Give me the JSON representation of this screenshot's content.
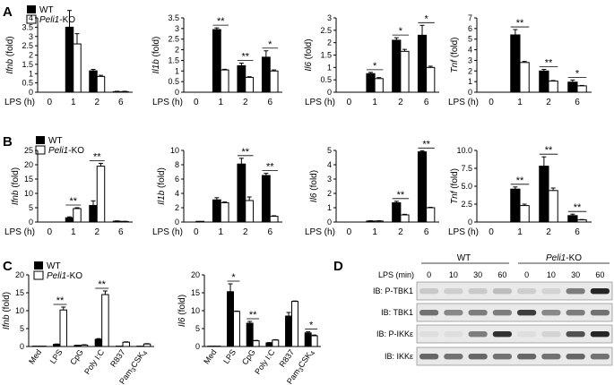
{
  "panel_labels": [
    "A",
    "B",
    "C",
    "D"
  ],
  "legend": {
    "wt": "WT",
    "ko": "Peli1-KO",
    "ko_italic": "Peli1",
    "ko_suffix": "-KO"
  },
  "lps_label": "LPS (h)",
  "sig": {
    "double": "**",
    "single": "*"
  },
  "chart_data": [
    {
      "id": "A1",
      "panel": "A",
      "type": "bar",
      "ylabel": "Ifnb (fold)",
      "ylabel_gene": "Ifnb",
      "ylabel_unit": "(fold)",
      "xlabel": "LPS (h)",
      "categories": [
        "0",
        "1",
        "2",
        "6"
      ],
      "ylim": [
        0,
        4
      ],
      "yticks": [
        0,
        0.5,
        1,
        1.5,
        2,
        2.5,
        3,
        3.5,
        4
      ],
      "series": [
        {
          "name": "WT",
          "values": [
            0,
            3.5,
            1.15,
            0.03
          ],
          "errors": [
            0,
            0.9,
            0.08,
            0.02
          ]
        },
        {
          "name": "Peli1-KO",
          "values": [
            0,
            2.6,
            0.85,
            0.03
          ],
          "errors": [
            0,
            0.55,
            0.06,
            0.02
          ]
        }
      ],
      "sig": [
        "",
        "",
        "",
        ""
      ]
    },
    {
      "id": "A2",
      "panel": "A",
      "type": "bar",
      "ylabel": "Il1b (fold)",
      "ylabel_gene": "Il1b",
      "ylabel_unit": "(fold)",
      "xlabel": "LPS (h)",
      "categories": [
        "0",
        "1",
        "2",
        "6"
      ],
      "ylim": [
        0,
        3.5
      ],
      "yticks": [
        0,
        0.5,
        1,
        1.5,
        2,
        2.5,
        3,
        3.5
      ],
      "series": [
        {
          "name": "WT",
          "values": [
            0,
            2.95,
            1.25,
            1.65
          ],
          "errors": [
            0,
            0.08,
            0.12,
            0.3
          ]
        },
        {
          "name": "Peli1-KO",
          "values": [
            0,
            1.05,
            0.7,
            1.0
          ],
          "errors": [
            0,
            0.03,
            0.03,
            0.05
          ]
        }
      ],
      "sig": [
        "",
        "**",
        "**",
        "*"
      ]
    },
    {
      "id": "A3",
      "panel": "A",
      "type": "bar",
      "ylabel": "Il6 (fold)",
      "ylabel_gene": "Il6",
      "ylabel_unit": "(fold)",
      "xlabel": "LPS (h)",
      "categories": [
        "0",
        "1",
        "2",
        "6"
      ],
      "ylim": [
        0,
        3
      ],
      "yticks": [
        0,
        0.5,
        1,
        1.5,
        2,
        2.5,
        3
      ],
      "series": [
        {
          "name": "WT",
          "values": [
            0,
            0.75,
            2.1,
            2.3
          ],
          "errors": [
            0,
            0.05,
            0.1,
            0.4
          ]
        },
        {
          "name": "Peli1-KO",
          "values": [
            0,
            0.55,
            1.65,
            1.0
          ],
          "errors": [
            0,
            0.04,
            0.08,
            0.05
          ]
        }
      ],
      "sig": [
        "",
        "*",
        "*",
        "*"
      ]
    },
    {
      "id": "A4",
      "panel": "A",
      "type": "bar",
      "ylabel": "Tnf (fold)",
      "ylabel_gene": "Tnf",
      "ylabel_unit": "(fold)",
      "xlabel": "LPS (h)",
      "categories": [
        "0",
        "1",
        "2",
        "6"
      ],
      "ylim": [
        0,
        7
      ],
      "yticks": [
        0,
        1,
        2,
        3,
        4,
        5,
        6,
        7
      ],
      "series": [
        {
          "name": "WT",
          "values": [
            0,
            5.4,
            2.0,
            0.95
          ],
          "errors": [
            0,
            0.5,
            0.15,
            0.2
          ]
        },
        {
          "name": "Peli1-KO",
          "values": [
            0,
            2.8,
            1.05,
            0.6
          ],
          "errors": [
            0,
            0.1,
            0.05,
            0.04
          ]
        }
      ],
      "sig": [
        "",
        "**",
        "**",
        "*"
      ]
    },
    {
      "id": "B1",
      "panel": "B",
      "type": "bar",
      "ylabel": "Ifnb (fold)",
      "ylabel_gene": "Ifnb",
      "ylabel_unit": "(fold)",
      "xlabel": "LPS (h)",
      "categories": [
        "0",
        "1",
        "2",
        "6"
      ],
      "ylim": [
        0,
        25
      ],
      "yticks": [
        0,
        5,
        10,
        15,
        20,
        25
      ],
      "series": [
        {
          "name": "WT",
          "values": [
            0,
            1.5,
            5.8,
            0.3
          ],
          "errors": [
            0,
            0.3,
            1.6,
            0.1
          ]
        },
        {
          "name": "Peli1-KO",
          "values": [
            0,
            4.7,
            19.5,
            0.2
          ],
          "errors": [
            0,
            0.3,
            1.0,
            0.05
          ]
        }
      ],
      "sig": [
        "",
        "**",
        "**",
        ""
      ]
    },
    {
      "id": "B2",
      "panel": "B",
      "type": "bar",
      "ylabel": "Il1b (fold)",
      "ylabel_gene": "Il1b",
      "ylabel_unit": "(fold)",
      "xlabel": "LPS (h)",
      "categories": [
        "0",
        "1",
        "2",
        "6"
      ],
      "ylim": [
        0,
        10
      ],
      "yticks": [
        0,
        2,
        4,
        6,
        8,
        10
      ],
      "series": [
        {
          "name": "WT",
          "values": [
            0,
            3.1,
            8.1,
            6.5
          ],
          "errors": [
            0,
            0.3,
            0.8,
            0.3
          ]
        },
        {
          "name": "Peli1-KO",
          "values": [
            0.1,
            2.7,
            3.0,
            0.8
          ],
          "errors": [
            0,
            0.1,
            0.5,
            0.08
          ]
        }
      ],
      "sig": [
        "",
        "",
        "**",
        "**"
      ]
    },
    {
      "id": "B3",
      "panel": "B",
      "type": "bar",
      "ylabel": "Il6 (fold)",
      "ylabel_gene": "Il6",
      "ylabel_unit": "(fold)",
      "xlabel": "LPS (h)",
      "categories": [
        "0",
        "1",
        "2",
        "6"
      ],
      "ylim": [
        0,
        5
      ],
      "yticks": [
        0,
        1,
        2,
        3,
        4,
        5
      ],
      "series": [
        {
          "name": "WT",
          "values": [
            0,
            0.07,
            1.35,
            4.9
          ],
          "errors": [
            0,
            0.02,
            0.1,
            0.08
          ]
        },
        {
          "name": "Peli1-KO",
          "values": [
            0,
            0.07,
            0.5,
            1.0
          ],
          "errors": [
            0,
            0.02,
            0.04,
            0.03
          ]
        }
      ],
      "sig": [
        "",
        "",
        "**",
        "**"
      ]
    },
    {
      "id": "B4",
      "panel": "B",
      "type": "bar",
      "ylabel": "Tnf (fold)",
      "ylabel_gene": "Tnf",
      "ylabel_unit": "(fold)",
      "xlabel": "LPS (h)",
      "categories": [
        "0",
        "1",
        "2",
        "6"
      ],
      "ylim": [
        0,
        10
      ],
      "yticks": [
        0,
        2.5,
        5,
        7.5,
        10
      ],
      "ytick_labels": [
        "0",
        "2.5",
        "5.0",
        "7.5",
        "10.0"
      ],
      "series": [
        {
          "name": "WT",
          "values": [
            0,
            4.6,
            7.8,
            0.9
          ],
          "errors": [
            0,
            0.3,
            1.3,
            0.2
          ]
        },
        {
          "name": "Peli1-KO",
          "values": [
            0,
            2.3,
            4.4,
            0.3
          ],
          "errors": [
            0,
            0.2,
            0.35,
            0.05
          ]
        }
      ],
      "sig": [
        "",
        "**",
        "**",
        "**"
      ]
    },
    {
      "id": "C1",
      "panel": "C",
      "type": "bar",
      "ylabel": "Ifnb (fold)",
      "ylabel_gene": "Ifnb",
      "ylabel_unit": "(fold)",
      "categories": [
        "Med",
        "LPS",
        "CpG",
        "Poly I:C",
        "R837",
        "Pam3CSK4"
      ],
      "ylim": [
        0,
        20
      ],
      "yticks": [
        0,
        5,
        10,
        15,
        20
      ],
      "series": [
        {
          "name": "WT",
          "values": [
            0.1,
            0.6,
            0.3,
            2.0,
            0.1,
            0.1
          ],
          "errors": [
            0,
            0.1,
            0.05,
            0.2,
            0,
            0
          ]
        },
        {
          "name": "Peli1-KO",
          "values": [
            0.1,
            10.2,
            0.4,
            14.5,
            1.2,
            0.7
          ],
          "errors": [
            0,
            0.8,
            0.1,
            1.0,
            0.1,
            0.1
          ]
        }
      ],
      "sig": [
        "",
        "**",
        "",
        "**",
        "",
        ""
      ]
    },
    {
      "id": "C2",
      "panel": "C",
      "type": "bar",
      "ylabel": "Il6 (fold)",
      "ylabel_gene": "Il6",
      "ylabel_unit": "(fold)",
      "categories": [
        "Med",
        "LPS",
        "CpG",
        "Poly I:C",
        "R837",
        "Pam3CSK4"
      ],
      "ylim": [
        0,
        20
      ],
      "yticks": [
        0,
        5,
        10,
        15,
        20
      ],
      "series": [
        {
          "name": "WT",
          "values": [
            0.1,
            15.3,
            6.5,
            1.0,
            8.5,
            3.8
          ],
          "errors": [
            0,
            2.2,
            0.5,
            0.1,
            1.0,
            0.3
          ]
        },
        {
          "name": "Peli1-KO",
          "values": [
            0.1,
            9.8,
            1.6,
            1.8,
            12.6,
            3.0
          ],
          "errors": [
            0,
            0.1,
            0.1,
            0.1,
            0.1,
            0.2
          ]
        }
      ],
      "sig": [
        "",
        "*",
        "**",
        "",
        "",
        "*"
      ]
    }
  ],
  "blot": {
    "time_label": "LPS (min)",
    "groups": [
      {
        "name": "WT",
        "italic": ""
      },
      {
        "name": "-KO",
        "italic": "Peli1"
      }
    ],
    "times": [
      "0",
      "10",
      "30",
      "60",
      "0",
      "10",
      "30",
      "60"
    ],
    "rows": [
      "IB: P-TBK1",
      "IB: TBK1",
      "IB: P-IKKε",
      "IB: IKKε"
    ]
  }
}
